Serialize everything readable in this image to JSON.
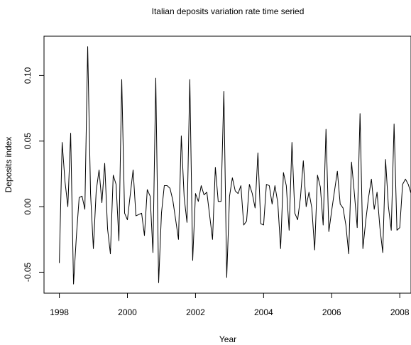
{
  "chart_data": {
    "type": "line",
    "title": "Italian deposits variation rate time seried",
    "xlabel": "Year",
    "ylabel": "Deposits index",
    "xlim": [
      1997.55,
      2008.33
    ],
    "ylim": [
      -0.066,
      0.13
    ],
    "x_ticks": [
      1998,
      2000,
      2002,
      2004,
      2006,
      2008
    ],
    "x_tick_labels": [
      "1998",
      "2000",
      "2002",
      "2004",
      "2006",
      "2008"
    ],
    "y_ticks": [
      -0.05,
      0.0,
      0.05,
      0.1
    ],
    "y_tick_labels": [
      "-0.05",
      "0.00",
      "0.05",
      "0.10"
    ],
    "grid": false,
    "legend": "none",
    "line_color": "#000000",
    "series": [
      {
        "x": [
          1998.0,
          1998.083,
          1998.167,
          1998.25,
          1998.333,
          1998.417,
          1998.5,
          1998.583,
          1998.667,
          1998.75,
          1998.833,
          1998.917,
          1999.0,
          1999.083,
          1999.167,
          1999.25,
          1999.333,
          1999.417,
          1999.5,
          1999.583,
          1999.667,
          1999.75,
          1999.833,
          1999.917,
          2000.0,
          2000.083,
          2000.167,
          2000.25,
          2000.333,
          2000.417,
          2000.5,
          2000.583,
          2000.667,
          2000.75,
          2000.833,
          2000.917,
          2001.0,
          2001.083,
          2001.167,
          2001.25,
          2001.333,
          2001.417,
          2001.5,
          2001.583,
          2001.667,
          2001.75,
          2001.833,
          2001.917,
          2002.0,
          2002.083,
          2002.167,
          2002.25,
          2002.333,
          2002.417,
          2002.5,
          2002.583,
          2002.667,
          2002.75,
          2002.833,
          2002.917,
          2003.0,
          2003.083,
          2003.167,
          2003.25,
          2003.333,
          2003.417,
          2003.5,
          2003.583,
          2003.667,
          2003.75,
          2003.833,
          2003.917,
          2004.0,
          2004.083,
          2004.167,
          2004.25,
          2004.333,
          2004.417,
          2004.5,
          2004.583,
          2004.667,
          2004.75,
          2004.833,
          2004.917,
          2005.0,
          2005.083,
          2005.167,
          2005.25,
          2005.333,
          2005.417,
          2005.5,
          2005.583,
          2005.667,
          2005.75,
          2005.833,
          2005.917,
          2006.0,
          2006.083,
          2006.167,
          2006.25,
          2006.333,
          2006.417,
          2006.5,
          2006.583,
          2006.667,
          2006.75,
          2006.833,
          2006.917,
          2007.0,
          2007.083,
          2007.167,
          2007.25,
          2007.333,
          2007.417,
          2007.5,
          2007.583,
          2007.667,
          2007.75,
          2007.833,
          2007.917,
          2008.0,
          2008.083,
          2008.167,
          2008.25,
          2008.333
        ],
        "y": [
          -0.043,
          0.049,
          0.019,
          0.0,
          0.056,
          -0.059,
          -0.023,
          0.007,
          0.008,
          -0.002,
          0.122,
          0.01,
          -0.032,
          0.012,
          0.028,
          0.003,
          0.033,
          -0.017,
          -0.036,
          0.024,
          0.017,
          -0.026,
          0.097,
          -0.005,
          -0.01,
          0.009,
          0.028,
          -0.007,
          -0.006,
          -0.005,
          -0.022,
          0.013,
          0.008,
          -0.035,
          0.098,
          -0.058,
          -0.005,
          0.016,
          0.016,
          0.014,
          0.005,
          -0.01,
          -0.025,
          0.054,
          0.007,
          -0.012,
          0.097,
          -0.041,
          0.01,
          0.004,
          0.016,
          0.009,
          0.011,
          -0.007,
          -0.025,
          0.03,
          0.004,
          0.004,
          0.088,
          -0.054,
          0.008,
          0.022,
          0.012,
          0.01,
          0.016,
          -0.014,
          -0.011,
          0.017,
          0.01,
          -0.001,
          0.041,
          -0.013,
          -0.014,
          0.017,
          0.016,
          0.002,
          0.016,
          0.003,
          -0.032,
          0.026,
          0.016,
          -0.018,
          0.049,
          -0.005,
          -0.01,
          0.007,
          0.035,
          0.0,
          0.011,
          -0.001,
          -0.033,
          0.024,
          0.015,
          -0.014,
          0.059,
          -0.019,
          -0.003,
          0.012,
          0.027,
          0.002,
          -0.001,
          -0.014,
          -0.036,
          0.034,
          0.01,
          -0.016,
          0.071,
          -0.032,
          -0.011,
          0.007,
          0.021,
          -0.002,
          0.011,
          -0.016,
          -0.035,
          0.036,
          0.0,
          -0.018,
          0.063,
          -0.018,
          -0.016,
          0.017,
          0.021,
          0.017,
          0.01
        ]
      }
    ]
  }
}
